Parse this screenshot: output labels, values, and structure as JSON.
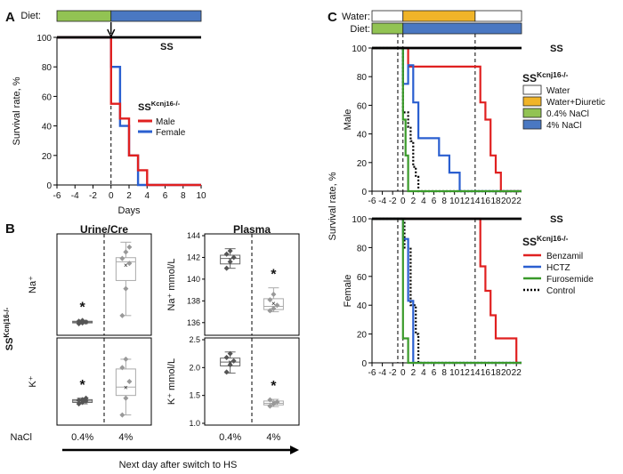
{
  "panels": [
    {
      "letter": "A"
    },
    {
      "letter": "B"
    },
    {
      "letter": "C"
    }
  ],
  "colors": {
    "diet_low": "#92c353",
    "diet_high": "#4a78c2",
    "water": "#ffffff",
    "diuretic": "#f0b429",
    "male": "#e02020",
    "female": "#2a5fd0",
    "ss": "#000000",
    "benzamil": "#e02020",
    "hctz": "#2a5fd0",
    "furosemide": "#3a9a2a",
    "box_dark": "#666666",
    "box_light": "#aaaaaa"
  },
  "chart_data": [
    {
      "id": "A",
      "type": "line",
      "step": true,
      "top_bar": {
        "label": "Diet:",
        "segments": [
          {
            "from": -6,
            "to": 0,
            "color": "diet_low"
          },
          {
            "from": 0,
            "to": 10,
            "color": "diet_high"
          }
        ]
      },
      "xlabel": "Days",
      "ylabel": "Survival rate, %",
      "xlim": [
        -6,
        10
      ],
      "ylim": [
        0,
        100
      ],
      "xticks": [
        -6,
        -4,
        -2,
        0,
        2,
        4,
        6,
        8,
        10
      ],
      "yticks": [
        0,
        20,
        40,
        60,
        80,
        100
      ],
      "legend_title": "SS",
      "legend_title_sup": "Kcnj16-/-",
      "legend_position": "right",
      "series": [
        {
          "name": "SS",
          "label": "SS",
          "color": "ss",
          "x": [
            -6,
            10
          ],
          "y": [
            100,
            100
          ]
        },
        {
          "name": "Male",
          "color": "male",
          "x": [
            -6,
            0,
            0,
            1,
            1,
            2,
            2,
            3,
            3,
            4,
            4,
            10
          ],
          "y": [
            100,
            100,
            55,
            55,
            45,
            45,
            20,
            20,
            10,
            10,
            0,
            0
          ]
        },
        {
          "name": "Female",
          "color": "female",
          "x": [
            -6,
            0,
            0,
            1,
            1,
            2,
            2,
            3,
            3,
            10
          ],
          "y": [
            100,
            100,
            80,
            80,
            40,
            40,
            20,
            20,
            0,
            0
          ]
        }
      ]
    },
    {
      "id": "B",
      "type": "box",
      "columns": [
        "Urine/Cre",
        "Plasma"
      ],
      "group_label": "SS",
      "group_label_sup": "Kcnj16-/-",
      "xlabel_prefix": "NaCl",
      "categories": [
        "0.4%",
        "4%"
      ],
      "footer": "Next day after switch to HS",
      "subplots": [
        {
          "ylabel": "Na⁺",
          "ylim": [
            0,
            120
          ],
          "yticks": [],
          "boxes": [
            {
              "cat": "0.4%",
              "min": 12,
              "q1": 13,
              "median": 14,
              "q3": 15,
              "max": 16,
              "mean": 14,
              "points": [
                12,
                13,
                14,
                15,
                16
              ],
              "star": true
            },
            {
              "cat": "4%",
              "min": 22,
              "q1": 65,
              "median": 88,
              "q3": 93,
              "max": 112,
              "mean": 84,
              "points": [
                22,
                55,
                86,
                92,
                100,
                106
              ],
              "star": false
            }
          ]
        },
        {
          "ylabel": "Na⁺ mmol/L",
          "ylim": [
            135,
            144
          ],
          "yticks": [
            136,
            138,
            140,
            142,
            144
          ],
          "boxes": [
            {
              "cat": "0.4%",
              "min": 141,
              "q1": 141.4,
              "median": 141.9,
              "q3": 142.2,
              "max": 142.8,
              "mean": 141.8,
              "points": [
                141.0,
                141.6,
                142.0,
                142.3,
                142.6
              ],
              "star": false
            },
            {
              "cat": "4%",
              "min": 137,
              "q1": 137.2,
              "median": 137.5,
              "q3": 138.2,
              "max": 139.2,
              "mean": 137.8,
              "points": [
                137.1,
                137.3,
                137.6,
                138.1,
                138.6
              ],
              "star": true
            }
          ]
        },
        {
          "ylabel": "K⁺",
          "ylim": [
            0,
            60
          ],
          "yticks": [],
          "boxes": [
            {
              "cat": "0.4%",
              "min": 14,
              "q1": 15,
              "median": 16,
              "q3": 17,
              "max": 18,
              "mean": 16,
              "points": [
                14,
                15,
                16,
                16.5,
                17,
                18
              ],
              "star": true
            },
            {
              "cat": "4%",
              "min": 6,
              "q1": 20,
              "median": 26,
              "q3": 39,
              "max": 46,
              "mean": 26,
              "points": [
                6,
                18,
                30,
                40,
                46
              ],
              "star": false
            }
          ]
        },
        {
          "ylabel": "K⁺ mmol/L",
          "ylim": [
            1.0,
            2.5
          ],
          "yticks": [
            1.0,
            1.5,
            2.0,
            2.5
          ],
          "tick_format": 1,
          "boxes": [
            {
              "cat": "0.4%",
              "min": 1.9,
              "q1": 2.03,
              "median": 2.1,
              "q3": 2.17,
              "max": 2.28,
              "mean": 2.1,
              "points": [
                1.92,
                2.05,
                2.12,
                2.18,
                2.25
              ],
              "star": false
            },
            {
              "cat": "4%",
              "min": 1.3,
              "q1": 1.33,
              "median": 1.36,
              "q3": 1.4,
              "max": 1.43,
              "mean": 1.37,
              "points": [
                1.31,
                1.35,
                1.38,
                1.42
              ],
              "star": true
            }
          ]
        }
      ]
    },
    {
      "id": "C",
      "type": "line",
      "step": true,
      "top_bars": [
        {
          "label": "Water:",
          "segments": [
            {
              "from": -6,
              "to": 0,
              "color": "water"
            },
            {
              "from": 0,
              "to": 14,
              "color": "diuretic"
            },
            {
              "from": 14,
              "to": 23,
              "color": "water"
            }
          ]
        },
        {
          "label": "Diet:",
          "segments": [
            {
              "from": -6,
              "to": 0,
              "color": "diet_low"
            },
            {
              "from": 0,
              "to": 23,
              "color": "diet_high"
            }
          ]
        }
      ],
      "xlim": [
        -6,
        23
      ],
      "ylim": [
        0,
        100
      ],
      "xticks": [
        -6,
        -4,
        -2,
        0,
        2,
        4,
        6,
        8,
        10,
        12,
        14,
        16,
        18,
        20,
        22
      ],
      "yticks": [
        0,
        20,
        40,
        60,
        80,
        100
      ],
      "ylabel": "Survival rate, %",
      "vlines": [
        -1,
        0,
        14
      ],
      "legend_title": "SS",
      "legend_title_sup": "Kcnj16-/-",
      "bar_legend": [
        {
          "label": "Water",
          "color": "water"
        },
        {
          "label": "Water+Diuretic",
          "color": "diuretic"
        },
        {
          "label": "0.4% NaCl",
          "color": "diet_low"
        },
        {
          "label": "4% NaCl",
          "color": "diet_high"
        }
      ],
      "line_legend": [
        {
          "label": "Benzamil",
          "color": "benzamil",
          "dash": false
        },
        {
          "label": "HCTZ",
          "color": "hctz",
          "dash": false
        },
        {
          "label": "Furosemide",
          "color": "furosemide",
          "dash": false
        },
        {
          "label": "Control",
          "color": "ss",
          "dash": true
        }
      ],
      "subplots": [
        {
          "row_label": "Male",
          "series": [
            {
              "name": "SS",
              "label": "SS",
              "color": "ss",
              "x": [
                -6,
                23
              ],
              "y": [
                100,
                100
              ]
            },
            {
              "name": "Furosemide",
              "color": "furosemide",
              "x": [
                -6,
                0,
                0,
                0.5,
                0.5,
                1,
                1,
                23
              ],
              "y": [
                100,
                100,
                50,
                50,
                25,
                25,
                0,
                0
              ]
            },
            {
              "name": "Control",
              "color": "ss",
              "dash": true,
              "x": [
                -6,
                0,
                0,
                1,
                1,
                1.5,
                1.5,
                2,
                2,
                2.5,
                2.5,
                3,
                3,
                23
              ],
              "y": [
                100,
                100,
                55,
                55,
                45,
                45,
                35,
                35,
                17,
                17,
                10,
                10,
                0,
                0
              ]
            },
            {
              "name": "HCTZ",
              "color": "hctz",
              "x": [
                -6,
                0,
                0,
                1,
                1,
                2,
                2,
                3,
                3,
                4,
                4,
                7,
                7,
                9,
                9,
                11,
                11,
                23
              ],
              "y": [
                100,
                100,
                75,
                75,
                88,
                88,
                62,
                62,
                37,
                37,
                37,
                37,
                25,
                25,
                13,
                13,
                0,
                0
              ]
            },
            {
              "name": "Benzamil",
              "color": "benzamil",
              "x": [
                -6,
                1,
                1,
                15,
                15,
                16,
                16,
                17,
                17,
                18,
                18,
                19,
                19,
                23
              ],
              "y": [
                100,
                100,
                87,
                87,
                62,
                62,
                50,
                50,
                25,
                25,
                13,
                13,
                0,
                0
              ]
            }
          ]
        },
        {
          "row_label": "Female",
          "series": [
            {
              "name": "SS",
              "label": "SS",
              "color": "ss",
              "x": [
                -6,
                23
              ],
              "y": [
                100,
                100
              ]
            },
            {
              "name": "Furosemide",
              "color": "furosemide",
              "x": [
                -6,
                0,
                0,
                1,
                1,
                23
              ],
              "y": [
                100,
                100,
                17,
                17,
                0,
                0
              ]
            },
            {
              "name": "HCTZ",
              "color": "hctz",
              "x": [
                -6,
                0,
                0,
                1,
                1,
                2,
                2,
                23
              ],
              "y": [
                100,
                100,
                86,
                86,
                43,
                43,
                0,
                0
              ]
            },
            {
              "name": "Control",
              "color": "ss",
              "dash": true,
              "x": [
                -6,
                0.3,
                0.3,
                1.5,
                1.5,
                2.5,
                2.5,
                3,
                3,
                23
              ],
              "y": [
                100,
                100,
                80,
                80,
                40,
                40,
                20,
                20,
                0,
                0
              ]
            },
            {
              "name": "Benzamil",
              "color": "benzamil",
              "x": [
                -6,
                15,
                15,
                16,
                16,
                17,
                17,
                18,
                18,
                20,
                20,
                22,
                22,
                23
              ],
              "y": [
                100,
                100,
                67,
                67,
                50,
                50,
                33,
                33,
                17,
                17,
                17,
                17,
                0,
                0
              ]
            }
          ]
        }
      ]
    }
  ]
}
